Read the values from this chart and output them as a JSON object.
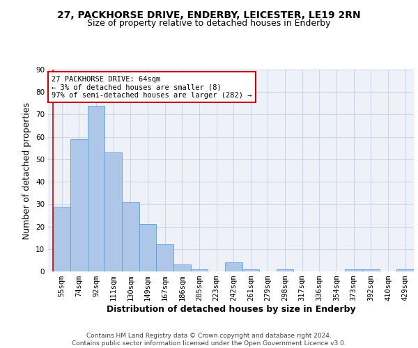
{
  "title_line1": "27, PACKHORSE DRIVE, ENDERBY, LEICESTER, LE19 2RN",
  "title_line2": "Size of property relative to detached houses in Enderby",
  "xlabel": "Distribution of detached houses by size in Enderby",
  "ylabel": "Number of detached properties",
  "footer_line1": "Contains HM Land Registry data © Crown copyright and database right 2024.",
  "footer_line2": "Contains public sector information licensed under the Open Government Licence v3.0.",
  "categories": [
    "55sqm",
    "74sqm",
    "92sqm",
    "111sqm",
    "130sqm",
    "149sqm",
    "167sqm",
    "186sqm",
    "205sqm",
    "223sqm",
    "242sqm",
    "261sqm",
    "279sqm",
    "298sqm",
    "317sqm",
    "336sqm",
    "354sqm",
    "373sqm",
    "392sqm",
    "410sqm",
    "429sqm"
  ],
  "values": [
    29,
    59,
    74,
    53,
    31,
    21,
    12,
    3,
    1,
    0,
    4,
    1,
    0,
    1,
    0,
    0,
    0,
    1,
    1,
    0,
    1
  ],
  "bar_color": "#aec6e8",
  "bar_edge_color": "#5a9fd4",
  "highlight_line_color": "#cc0000",
  "annotation_line1": "27 PACKHORSE DRIVE: 64sqm",
  "annotation_line2": "← 3% of detached houses are smaller (8)",
  "annotation_line3": "97% of semi-detached houses are larger (282) →",
  "annotation_box_color": "#ffffff",
  "annotation_box_edge_color": "#cc0000",
  "ylim": [
    0,
    90
  ],
  "yticks": [
    0,
    10,
    20,
    30,
    40,
    50,
    60,
    70,
    80,
    90
  ],
  "bg_color": "#eef2f8",
  "grid_color": "#c8d4e8",
  "title_fontsize": 10,
  "subtitle_fontsize": 9,
  "axis_label_fontsize": 9,
  "tick_fontsize": 7.5,
  "annotation_fontsize": 7.5,
  "footer_fontsize": 6.5
}
